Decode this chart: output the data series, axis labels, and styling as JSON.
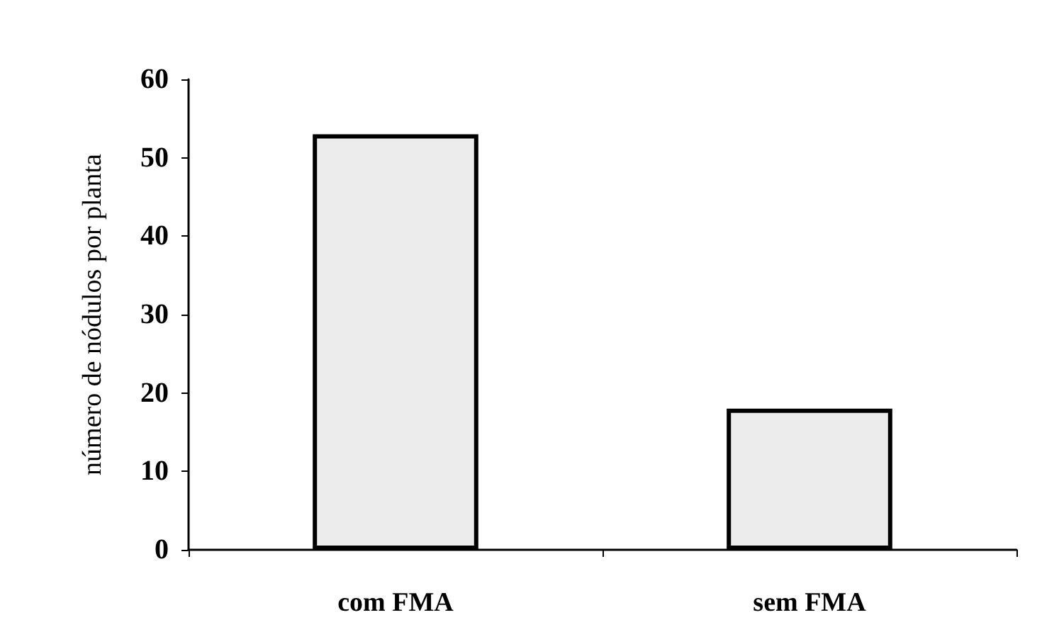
{
  "chart_data": {
    "type": "bar",
    "ylabel": "número de nódulos por planta",
    "categories": [
      "com FMA",
      "sem FMA"
    ],
    "values": [
      53,
      18
    ],
    "color": "#ececec",
    "ylim": [
      0,
      60
    ],
    "yticks": [
      0,
      10,
      20,
      30,
      40,
      50,
      60
    ],
    "grid": false
  }
}
